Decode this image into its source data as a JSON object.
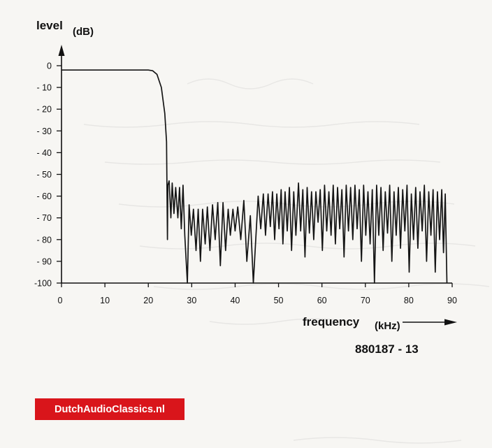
{
  "chart_data": {
    "type": "line",
    "ylabel": "level",
    "yunit": "(dB)",
    "xlabel": "frequency",
    "xunit": "(kHz)",
    "xlim": [
      0,
      90
    ],
    "ylim": [
      -100,
      0
    ],
    "xticks": [
      "0",
      "10",
      "20",
      "30",
      "40",
      "50",
      "60",
      "70",
      "80",
      "90"
    ],
    "yticks": [
      "0",
      "- 10",
      "- 20",
      "- 30",
      "- 40",
      "- 50",
      "- 60",
      "- 70",
      "- 80",
      "- 90",
      "-100"
    ],
    "grid": false,
    "series": [
      {
        "passband": [
          [
            0,
            -2
          ],
          [
            5,
            -2
          ],
          [
            10,
            -2
          ],
          [
            15,
            -2
          ],
          [
            18,
            -2
          ],
          [
            20,
            -2
          ],
          [
            21,
            -2.3
          ],
          [
            22,
            -4
          ],
          [
            23,
            -10
          ],
          [
            23.8,
            -22
          ],
          [
            24.2,
            -35
          ],
          [
            24.5,
            -55
          ]
        ],
        "lobe_peaks": [
          [
            24.8,
            -53
          ],
          [
            25.5,
            -54
          ],
          [
            26.3,
            -56
          ],
          [
            27.2,
            -56
          ],
          [
            28.0,
            -55
          ],
          [
            29.4,
            -64
          ],
          [
            30.4,
            -66
          ],
          [
            31.5,
            -66
          ],
          [
            32.5,
            -66
          ],
          [
            33.6,
            -65
          ],
          [
            34.8,
            -64
          ],
          [
            36.0,
            -63
          ],
          [
            37.2,
            -63
          ],
          [
            38.4,
            -66
          ],
          [
            39.5,
            -66
          ],
          [
            40.6,
            -65
          ],
          [
            42.0,
            -62
          ],
          [
            43.5,
            -69
          ],
          [
            45.3,
            -60
          ],
          [
            46.5,
            -59
          ],
          [
            47.6,
            -59
          ],
          [
            48.6,
            -58
          ],
          [
            49.6,
            -59
          ],
          [
            50.6,
            -57
          ],
          [
            51.5,
            -58
          ],
          [
            52.5,
            -56
          ],
          [
            53.5,
            -58
          ],
          [
            54.6,
            -54
          ],
          [
            55.6,
            -57
          ],
          [
            56.6,
            -56
          ],
          [
            57.6,
            -58
          ],
          [
            58.6,
            -58
          ],
          [
            59.6,
            -57
          ],
          [
            60.6,
            -55
          ],
          [
            61.6,
            -58
          ],
          [
            62.6,
            -55
          ],
          [
            63.6,
            -56
          ],
          [
            64.6,
            -57
          ],
          [
            65.6,
            -55
          ],
          [
            66.6,
            -56
          ],
          [
            67.6,
            -55
          ],
          [
            68.6,
            -57
          ],
          [
            69.6,
            -55
          ],
          [
            70.6,
            -58
          ],
          [
            71.6,
            -57
          ],
          [
            72.6,
            -55
          ],
          [
            73.6,
            -56
          ],
          [
            74.6,
            -58
          ],
          [
            75.6,
            -55
          ],
          [
            76.6,
            -58
          ],
          [
            77.6,
            -56
          ],
          [
            78.6,
            -57
          ],
          [
            79.6,
            -55
          ],
          [
            80.6,
            -59
          ],
          [
            81.6,
            -56
          ],
          [
            82.6,
            -58
          ],
          [
            83.6,
            -55
          ],
          [
            84.6,
            -58
          ],
          [
            85.6,
            -57
          ],
          [
            86.6,
            -58
          ],
          [
            87.6,
            -57
          ],
          [
            88.4,
            -59
          ]
        ],
        "lobe_nulls": [
          [
            24.4,
            -80
          ],
          [
            25.2,
            -70
          ],
          [
            25.9,
            -68
          ],
          [
            26.8,
            -70
          ],
          [
            27.6,
            -75
          ],
          [
            28.4,
            -78
          ],
          [
            29.0,
            -100
          ],
          [
            29.9,
            -78
          ],
          [
            31.0,
            -85
          ],
          [
            32.0,
            -90
          ],
          [
            33.1,
            -82
          ],
          [
            34.2,
            -85
          ],
          [
            35.4,
            -80
          ],
          [
            36.6,
            -92
          ],
          [
            37.8,
            -85
          ],
          [
            38.9,
            -78
          ],
          [
            40.0,
            -76
          ],
          [
            41.3,
            -80
          ],
          [
            42.7,
            -90
          ],
          [
            44.2,
            -100
          ],
          [
            45.9,
            -75
          ],
          [
            47.0,
            -78
          ],
          [
            48.1,
            -74
          ],
          [
            49.1,
            -80
          ],
          [
            50.1,
            -75
          ],
          [
            51.0,
            -82
          ],
          [
            52.0,
            -76
          ],
          [
            53.0,
            -85
          ],
          [
            54.0,
            -78
          ],
          [
            55.1,
            -76
          ],
          [
            56.1,
            -88
          ],
          [
            57.1,
            -77
          ],
          [
            58.1,
            -80
          ],
          [
            59.1,
            -72
          ],
          [
            60.1,
            -85
          ],
          [
            61.1,
            -76
          ],
          [
            62.1,
            -78
          ],
          [
            63.1,
            -82
          ],
          [
            64.1,
            -75
          ],
          [
            65.1,
            -88
          ],
          [
            66.1,
            -76
          ],
          [
            67.1,
            -80
          ],
          [
            68.1,
            -75
          ],
          [
            69.1,
            -90
          ],
          [
            70.1,
            -78
          ],
          [
            71.1,
            -82
          ],
          [
            72.1,
            -100
          ],
          [
            73.1,
            -78
          ],
          [
            74.1,
            -85
          ],
          [
            75.1,
            -77
          ],
          [
            76.1,
            -90
          ],
          [
            77.1,
            -78
          ],
          [
            78.1,
            -84
          ],
          [
            79.1,
            -76
          ],
          [
            80.1,
            -95
          ],
          [
            81.1,
            -80
          ],
          [
            82.1,
            -84
          ],
          [
            83.1,
            -76
          ],
          [
            84.1,
            -90
          ],
          [
            85.1,
            -78
          ],
          [
            86.1,
            -95
          ],
          [
            87.1,
            -80
          ],
          [
            88.0,
            -86
          ],
          [
            88.8,
            -100
          ]
        ]
      }
    ]
  },
  "figure_code": "880187 - 13",
  "watermark": {
    "text": "DutchAudioClassics.nl",
    "color": "#d9151b"
  }
}
